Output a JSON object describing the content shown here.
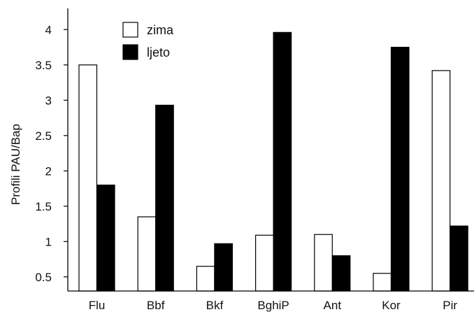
{
  "chart_data": {
    "type": "bar",
    "title": "",
    "xlabel": "",
    "ylabel": "Profili PAU/Bap",
    "categories": [
      "Flu",
      "Bbf",
      "Bkf",
      "BghiP",
      "Ant",
      "Kor",
      "Pir"
    ],
    "series": [
      {
        "name": "zima",
        "values": [
          3.5,
          1.35,
          0.65,
          1.09,
          1.1,
          0.55,
          3.42
        ],
        "fill": "#ffffff",
        "stroke": "#000000"
      },
      {
        "name": "ljeto",
        "values": [
          1.8,
          2.93,
          0.97,
          3.96,
          0.8,
          3.75,
          1.22
        ],
        "fill": "#000000",
        "stroke": "#000000"
      }
    ],
    "ylim": [
      0.3,
      4.3
    ],
    "yticks": [
      "0.5",
      "1",
      "1.5",
      "2",
      "2.5",
      "3",
      "3.5",
      "4"
    ],
    "grid": false,
    "legend_position": "top-left"
  }
}
